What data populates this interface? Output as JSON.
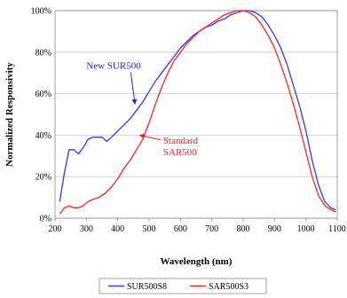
{
  "chart_data": {
    "type": "line",
    "title": "",
    "xlabel": "Wavelength (nm)",
    "ylabel": "Normalized Responsivity",
    "xlim": [
      200,
      1100
    ],
    "ylim": [
      0,
      100
    ],
    "x_ticks": [
      "200",
      "300",
      "400",
      "500",
      "600",
      "700",
      "800",
      "900",
      "1000",
      "1100"
    ],
    "y_ticks": [
      "0%",
      "20%",
      "40%",
      "60%",
      "80%",
      "100%"
    ],
    "grid": true,
    "legend": "bottom",
    "series": [
      {
        "name": "SUR500S8",
        "color": "#3333ff",
        "points": [
          [
            215,
            8
          ],
          [
            230,
            22
          ],
          [
            245,
            33
          ],
          [
            260,
            33
          ],
          [
            275,
            31
          ],
          [
            290,
            34
          ],
          [
            305,
            38
          ],
          [
            320,
            39
          ],
          [
            335,
            39
          ],
          [
            350,
            39
          ],
          [
            365,
            37
          ],
          [
            380,
            39
          ],
          [
            400,
            42
          ],
          [
            420,
            45
          ],
          [
            440,
            48
          ],
          [
            460,
            52
          ],
          [
            480,
            56
          ],
          [
            500,
            61
          ],
          [
            520,
            66
          ],
          [
            540,
            70
          ],
          [
            560,
            74
          ],
          [
            580,
            78
          ],
          [
            600,
            82
          ],
          [
            620,
            85
          ],
          [
            640,
            88
          ],
          [
            660,
            90
          ],
          [
            680,
            92
          ],
          [
            700,
            93
          ],
          [
            720,
            95
          ],
          [
            740,
            96
          ],
          [
            760,
            98
          ],
          [
            780,
            99
          ],
          [
            800,
            100
          ],
          [
            820,
            100
          ],
          [
            840,
            99
          ],
          [
            860,
            97
          ],
          [
            880,
            93
          ],
          [
            900,
            88
          ],
          [
            920,
            82
          ],
          [
            940,
            74
          ],
          [
            960,
            64
          ],
          [
            980,
            54
          ],
          [
            1000,
            42
          ],
          [
            1020,
            28
          ],
          [
            1040,
            16
          ],
          [
            1060,
            8
          ],
          [
            1080,
            5
          ],
          [
            1095,
            4
          ]
        ]
      },
      {
        "name": "SAR500S3",
        "color": "#ff2222",
        "points": [
          [
            215,
            2
          ],
          [
            230,
            5
          ],
          [
            245,
            6
          ],
          [
            260,
            5
          ],
          [
            275,
            5
          ],
          [
            290,
            6
          ],
          [
            305,
            8
          ],
          [
            320,
            9
          ],
          [
            340,
            10
          ],
          [
            360,
            12
          ],
          [
            380,
            15
          ],
          [
            400,
            19
          ],
          [
            420,
            24
          ],
          [
            440,
            28
          ],
          [
            460,
            33
          ],
          [
            480,
            38
          ],
          [
            500,
            46
          ],
          [
            520,
            55
          ],
          [
            540,
            63
          ],
          [
            560,
            70
          ],
          [
            580,
            76
          ],
          [
            600,
            80
          ],
          [
            620,
            84
          ],
          [
            640,
            87
          ],
          [
            660,
            90
          ],
          [
            680,
            92
          ],
          [
            700,
            94
          ],
          [
            720,
            96
          ],
          [
            740,
            98
          ],
          [
            760,
            99
          ],
          [
            780,
            100
          ],
          [
            800,
            100
          ],
          [
            820,
            99
          ],
          [
            840,
            97
          ],
          [
            860,
            93
          ],
          [
            880,
            88
          ],
          [
            900,
            82
          ],
          [
            920,
            74
          ],
          [
            940,
            65
          ],
          [
            960,
            55
          ],
          [
            980,
            44
          ],
          [
            1000,
            32
          ],
          [
            1020,
            20
          ],
          [
            1040,
            11
          ],
          [
            1060,
            6
          ],
          [
            1080,
            4
          ],
          [
            1095,
            3
          ]
        ]
      }
    ],
    "annotations": [
      {
        "name": "annotation-new-sur500",
        "lines": [
          "New SUR500"
        ],
        "color": "#2222dd",
        "arrow_to": [
          455,
          55
        ],
        "text_at": [
          300,
          72
        ]
      },
      {
        "name": "annotation-standard-sar500",
        "lines": [
          "Standard",
          "SAR500"
        ],
        "color": "#ee2222",
        "arrow_to": [
          470,
          40
        ],
        "text_at": [
          545,
          36
        ]
      }
    ]
  }
}
